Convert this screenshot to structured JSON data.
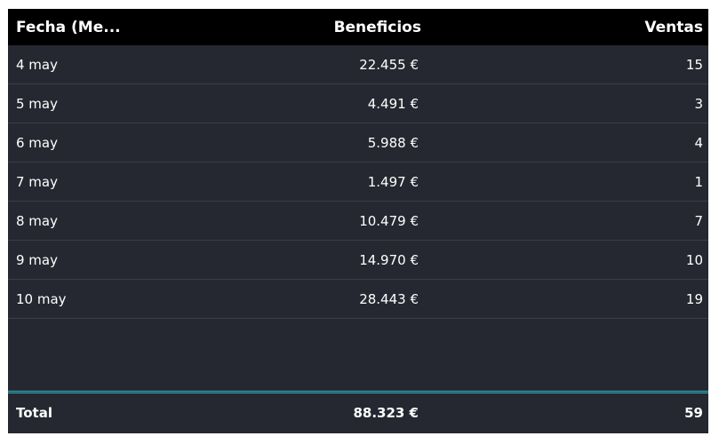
{
  "table": {
    "headers": {
      "date": "Fecha (Me...",
      "benefits": "Beneficios",
      "sales": "Ventas"
    },
    "rows": [
      {
        "date": "4 may",
        "benefits": "22.455 €",
        "sales": "15"
      },
      {
        "date": "5 may",
        "benefits": "4.491 €",
        "sales": "3"
      },
      {
        "date": "6 may",
        "benefits": "5.988 €",
        "sales": "4"
      },
      {
        "date": "7 may",
        "benefits": "1.497 €",
        "sales": "1"
      },
      {
        "date": "8 may",
        "benefits": "10.479 €",
        "sales": "7"
      },
      {
        "date": "9 may",
        "benefits": "14.970 €",
        "sales": "10"
      },
      {
        "date": "10 may",
        "benefits": "28.443 €",
        "sales": "19"
      }
    ],
    "total": {
      "label": "Total",
      "benefits": "88.323 €",
      "sales": "59"
    }
  },
  "colors": {
    "header_bg": "#000000",
    "body_bg": "#252830",
    "row_divider": "#3a3e46",
    "total_separator": "#2fb4c4",
    "text": "#ffffff"
  }
}
